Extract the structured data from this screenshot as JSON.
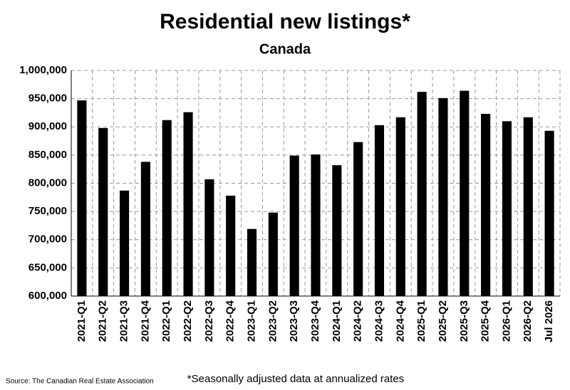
{
  "chart_data": {
    "type": "bar",
    "title": "Residential new listings*",
    "subtitle": "Canada",
    "categories": [
      "2021-Q1",
      "2021-Q2",
      "2021-Q3",
      "2021-Q4",
      "2022-Q1",
      "2022-Q2",
      "2022-Q3",
      "2022-Q4",
      "2023-Q1",
      "2023-Q2",
      "2023-Q3",
      "2023-Q4",
      "2024-Q1",
      "2024-Q2",
      "2024-Q3",
      "2024-Q4",
      "2025-Q1",
      "2025-Q2",
      "2025-Q3",
      "2025-Q4",
      "2026-Q1",
      "2026-Q2",
      "Jul 2026"
    ],
    "values": [
      947000,
      898000,
      787000,
      838000,
      912000,
      926000,
      807000,
      778000,
      719000,
      748000,
      849000,
      851000,
      832000,
      873000,
      903000,
      917000,
      962000,
      951000,
      964000,
      923000,
      910000,
      917000,
      893000
    ],
    "color": "#000000",
    "ylim": [
      600000,
      1000000
    ],
    "yticks": [
      {
        "value": 600000,
        "label": "600,000"
      },
      {
        "value": 650000,
        "label": "650,000"
      },
      {
        "value": 700000,
        "label": "700,000"
      },
      {
        "value": 750000,
        "label": "750,000"
      },
      {
        "value": 800000,
        "label": "800,000"
      },
      {
        "value": 850000,
        "label": "850,000"
      },
      {
        "value": 900000,
        "label": "900,000"
      },
      {
        "value": 950000,
        "label": "950,000"
      },
      {
        "value": 1000000,
        "label": "1,000,000"
      }
    ],
    "grid": true,
    "source": "Source: The Canadian Real Estate Association",
    "footnote": "*Seasonally adjusted data at annualized rates"
  }
}
